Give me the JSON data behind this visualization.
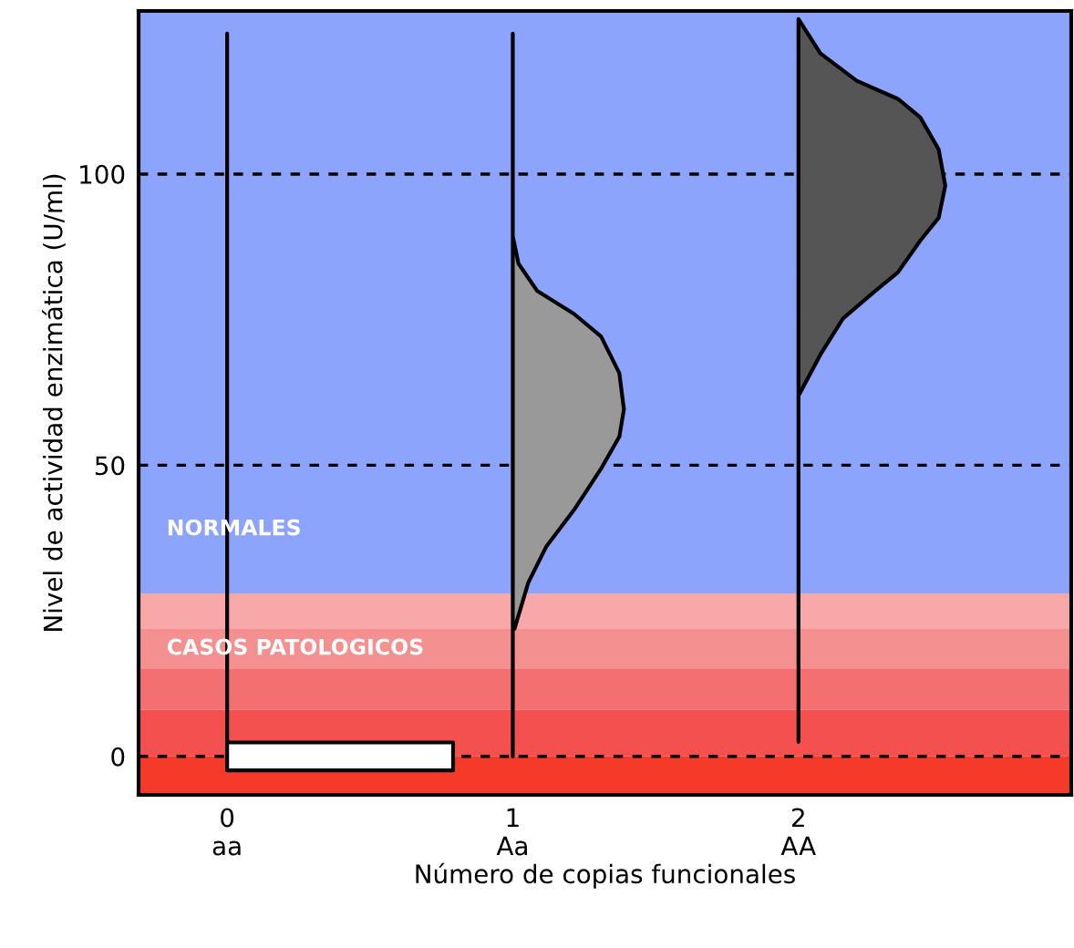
{
  "chart_data": {
    "type": "area",
    "xlabel": "Número de copias funcionales",
    "ylabel": "Nivel de actividad enzimática (U/ml)",
    "xlim": [
      -0.31,
      2.955
    ],
    "ylim": [
      -6.6,
      128
    ],
    "xticks": [
      {
        "value": 0,
        "label": "0\naa"
      },
      {
        "value": 1,
        "label": "1\nAa"
      },
      {
        "value": 2,
        "label": "2\nAA"
      }
    ],
    "yticks": [
      0,
      50,
      100
    ],
    "bands": [
      {
        "axis": "y",
        "from": 28,
        "to": 128,
        "color": "#8ca4fb",
        "label": "NORMALES"
      },
      {
        "axis": "y",
        "from": 22,
        "to": 28,
        "color": "#f8a8a8"
      },
      {
        "axis": "y",
        "from": 15,
        "to": 22,
        "color": "#f59090",
        "label": "CASOS PATOLOGICOS"
      },
      {
        "axis": "y",
        "from": 8,
        "to": 15,
        "color": "#f47070"
      },
      {
        "axis": "y",
        "from": 0,
        "to": 8,
        "color": "#f55050"
      },
      {
        "axis": "y",
        "from": -6.6,
        "to": 0,
        "color": "#f53a2a"
      }
    ],
    "series": [
      {
        "color": "#ffffff",
        "x": [
          0,
          0,
          0.791,
          0.791,
          0
        ],
        "values": [
          124.1,
          -2.4,
          -2.4,
          2.4,
          2.4
        ]
      },
      {
        "color": "#999999",
        "x": [
          1.0,
          1.0,
          1.0,
          1.02,
          1.086,
          1.214,
          1.309,
          1.373,
          1.389,
          1.373,
          1.309,
          1.214,
          1.118,
          1.054,
          1.006,
          1.0
        ],
        "values": [
          0,
          124.1,
          89.3,
          84.6,
          79.9,
          76.0,
          72.1,
          65.8,
          59.6,
          54.9,
          49.4,
          42.3,
          36.1,
          29.8,
          21.9,
          21.9
        ]
      },
      {
        "color": "#555555",
        "x": [
          2.0,
          2.0,
          2.077,
          2.204,
          2.348,
          2.427,
          2.491,
          2.514,
          2.491,
          2.427,
          2.348,
          2.268,
          2.156,
          2.077,
          2.0
        ],
        "values": [
          2.5,
          126.6,
          120.7,
          116.0,
          112.9,
          109.7,
          104.2,
          98.0,
          92.5,
          88.6,
          83.1,
          79.9,
          75.2,
          69.0,
          61.9
        ]
      }
    ],
    "grid": "y"
  }
}
